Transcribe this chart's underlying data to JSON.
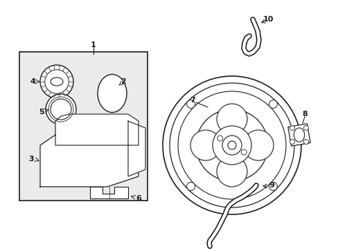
{
  "bg_color": "#ffffff",
  "line_color": "#1a1a1a",
  "box_bg": "#ebebeb",
  "figsize": [
    4.89,
    3.6
  ],
  "dpi": 100,
  "xlim": [
    0,
    489
  ],
  "ylim": [
    0,
    360
  ]
}
